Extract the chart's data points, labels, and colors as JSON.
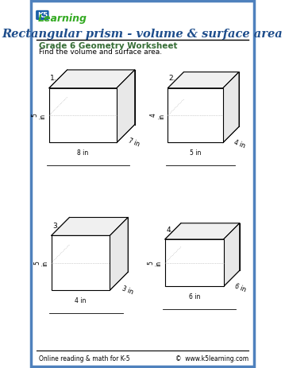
{
  "title": "Rectangular prism - volume & surface area",
  "subtitle": "Grade 6 Geometry Worksheet",
  "instruction": "Find the volume and surface area.",
  "footer_left": "Online reading & math for K-5",
  "footer_right": "©  www.k5learning.com",
  "border_color": "#4f81bd",
  "title_color": "#1f4e8c",
  "subtitle_color": "#376e37",
  "boxes": [
    {
      "label": "1.",
      "dims": {
        "length": "8 in",
        "width": "7 in",
        "height": "5\nin"
      }
    },
    {
      "label": "2.",
      "dims": {
        "length": "5 in",
        "width": "4 in",
        "height": "4\nin"
      }
    },
    {
      "label": "3.",
      "dims": {
        "length": "4 in",
        "width": "3 in",
        "height": "5\nin"
      }
    },
    {
      "label": "4.",
      "dims": {
        "length": "6 in",
        "width": "6 in",
        "height": "5\nin"
      }
    }
  ],
  "prism_configs": [
    [
      0.235,
      0.685,
      0.3,
      0.148,
      0.13
    ],
    [
      0.735,
      0.685,
      0.245,
      0.148,
      0.115
    ],
    [
      0.225,
      0.285,
      0.26,
      0.148,
      0.13
    ],
    [
      0.73,
      0.285,
      0.26,
      0.128,
      0.115
    ]
  ]
}
